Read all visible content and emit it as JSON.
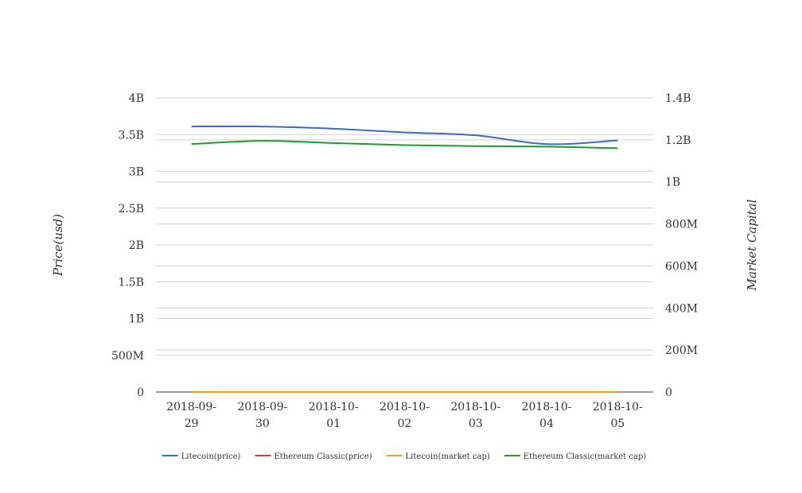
{
  "chart_data": {
    "type": "line",
    "title": "",
    "categories": [
      "2018-09-29",
      "2018-09-30",
      "2018-10-01",
      "2018-10-02",
      "2018-10-03",
      "2018-10-04",
      "2018-10-05"
    ],
    "category_labels": [
      [
        "2018-09-",
        "29"
      ],
      [
        "2018-09-",
        "30"
      ],
      [
        "2018-10-",
        "01"
      ],
      [
        "2018-10-",
        "02"
      ],
      [
        "2018-10-",
        "03"
      ],
      [
        "2018-10-",
        "04"
      ],
      [
        "2018-10-",
        "05"
      ]
    ],
    "ylabel_left": "Price(usd)",
    "ylabel_right": "Market Capital",
    "ylim_left": [
      0,
      4000000000
    ],
    "ylim_right": [
      0,
      1400000000
    ],
    "yticks_left": [
      "0",
      "500M",
      "1B",
      "1.5B",
      "2B",
      "2.5B",
      "3B",
      "3.5B",
      "4B"
    ],
    "yticks_right": [
      "0",
      "200M",
      "400M",
      "600M",
      "800M",
      "1B",
      "1.2B",
      "1.4B"
    ],
    "grid": true,
    "smooth": true,
    "legend_position": "bottom",
    "series": [
      {
        "name": "Litecoin(price)",
        "axis": "left",
        "color": "#3b6abf",
        "values": [
          3610000000,
          3610000000,
          3580000000,
          3530000000,
          3490000000,
          3370000000,
          3420000000
        ]
      },
      {
        "name": "Ethereum Classic(price)",
        "axis": "left",
        "color": "#c8442b",
        "values": [
          11,
          11,
          11,
          11,
          11,
          10,
          10
        ]
      },
      {
        "name": "Litecoin(market cap)",
        "axis": "right",
        "color": "#f3a21f",
        "values": [
          62,
          62,
          61,
          61,
          60,
          56,
          57
        ]
      },
      {
        "name": "Ethereum Classic(market cap)",
        "axis": "right",
        "color": "#1f9b2c",
        "values": [
          1180000000,
          1195000000,
          1185000000,
          1175000000,
          1170000000,
          1168000000,
          1160000000
        ]
      }
    ]
  }
}
